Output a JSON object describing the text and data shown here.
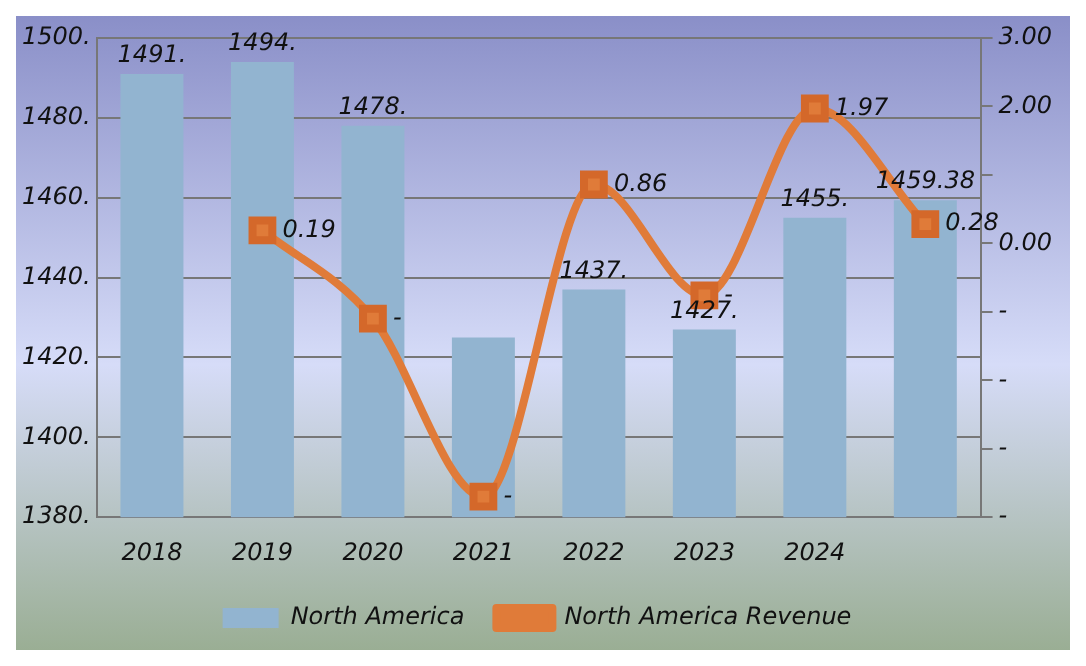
{
  "chart_data": {
    "type": "bar",
    "categories": [
      "2018",
      "2019",
      "2020",
      "2021",
      "2022",
      "2023",
      "2024",
      null
    ],
    "series": [
      {
        "name": "North America",
        "color": "#92b4d0",
        "values": [
          1491,
          1494,
          1478,
          1425,
          1437,
          1427,
          1455,
          1459.38
        ],
        "value_labels": [
          "1491.",
          "1494.",
          "1478.",
          null,
          "1437.",
          "1427.",
          "1455.",
          "1459.38"
        ]
      },
      {
        "name": "North America Revenue",
        "type": "line",
        "axis": "y2",
        "color": "#e07b39",
        "marker": "square",
        "values": [
          null,
          0.19,
          -1.1,
          -3.7,
          0.86,
          -0.76,
          1.97,
          0.28
        ],
        "value_labels": [
          null,
          "0.19",
          "-",
          "-",
          "0.86",
          "-",
          "1.97",
          "0.28"
        ]
      }
    ],
    "ylim": [
      1380,
      1500
    ],
    "yticks": [
      {
        "value": 1380,
        "label": "1380."
      },
      {
        "value": 1400,
        "label": "1400."
      },
      {
        "value": 1420,
        "label": "1420."
      },
      {
        "value": 1440,
        "label": "1440."
      },
      {
        "value": 1460,
        "label": "1460."
      },
      {
        "value": 1480,
        "label": "1480."
      },
      {
        "value": 1500,
        "label": "1500."
      }
    ],
    "y2lim": [
      -4,
      3
    ],
    "y2ticks": [
      {
        "value": -4,
        "label": "-"
      },
      {
        "value": -3,
        "label": "-"
      },
      {
        "value": -2,
        "label": "-"
      },
      {
        "value": -1,
        "label": "-"
      },
      {
        "value": 0,
        "label": "0.00"
      },
      {
        "value": 1,
        "label": null
      },
      {
        "value": 2,
        "label": "2.00"
      },
      {
        "value": 3,
        "label": "3.00"
      }
    ],
    "grid": "y",
    "legend": "bottom"
  }
}
